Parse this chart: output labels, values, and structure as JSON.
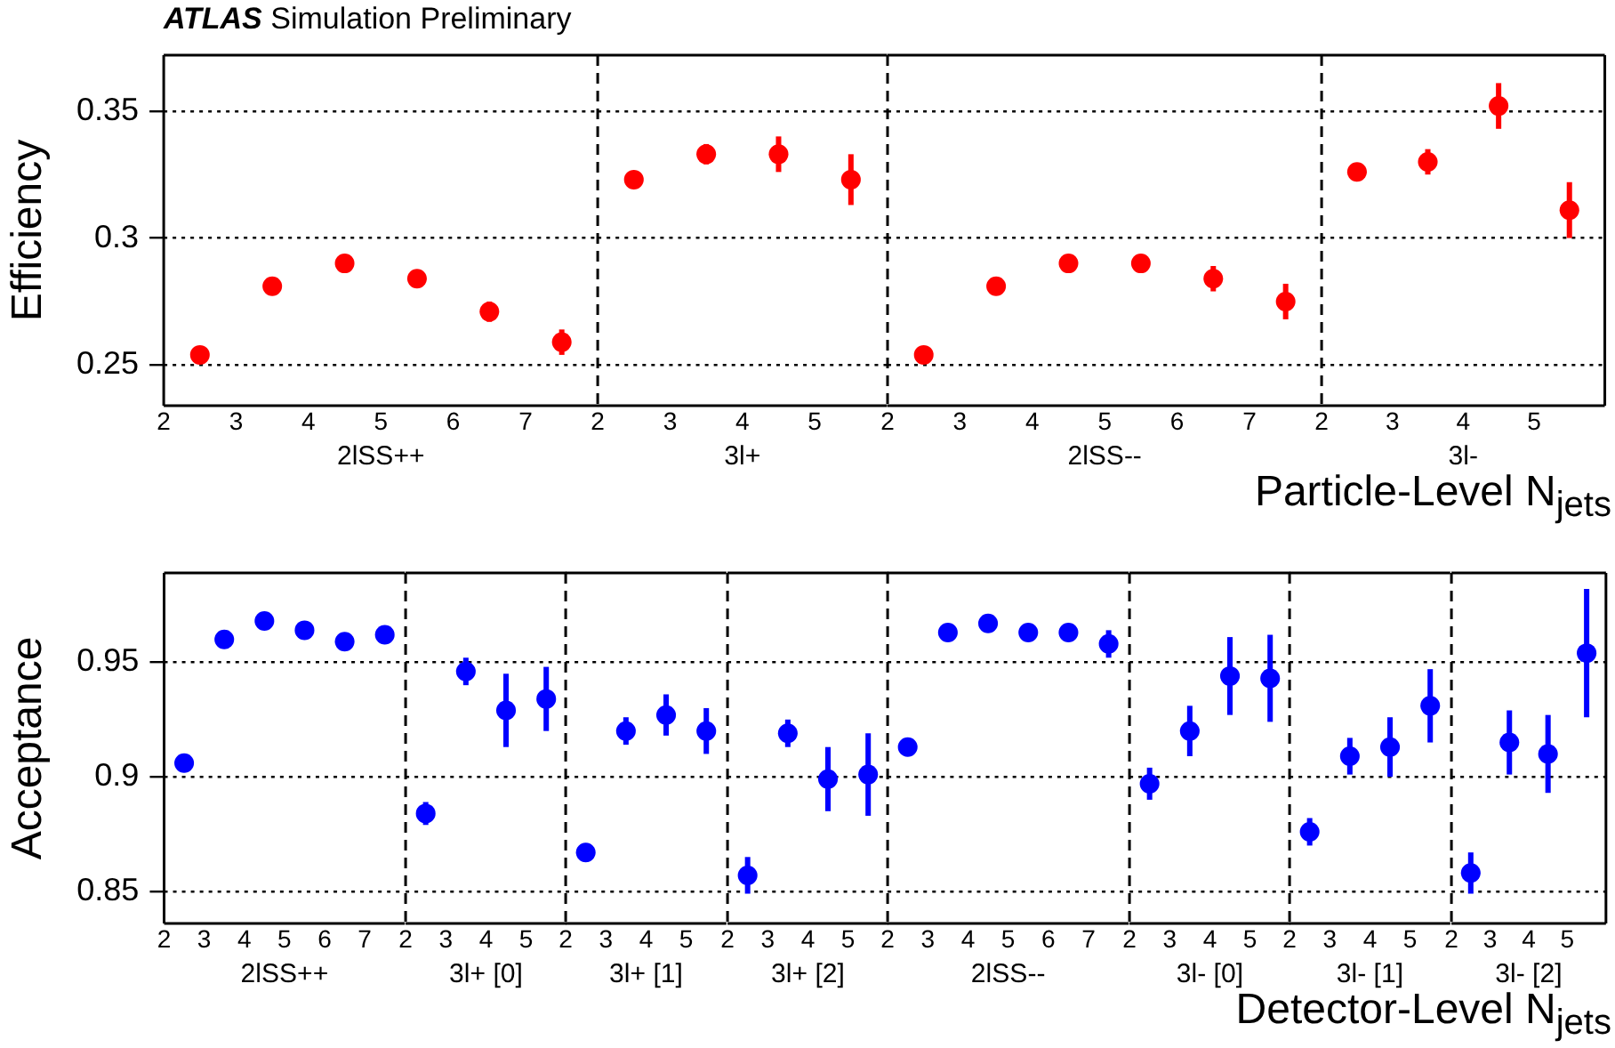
{
  "chart_data": [
    {
      "type": "scatter",
      "title": "ATLAS Simulation Preliminary",
      "ylabel": "Efficiency",
      "xlabel": "2lSS++",
      "x": [
        2.5,
        3.5,
        4.5,
        5.5,
        6.5,
        7.5
      ],
      "series": [
        {
          "color": "#ff0000",
          "values": [
            0.254,
            0.281,
            0.29,
            0.284,
            0.271,
            0.259
          ],
          "errors": [
            null,
            null,
            null,
            null,
            0.004,
            0.005
          ]
        }
      ],
      "xlim": [
        2,
        8
      ],
      "xticks": [
        2,
        3,
        4,
        5,
        6,
        7
      ],
      "ylim": [
        0.234,
        0.372
      ],
      "yticks": [
        0.25,
        0.3,
        0.35
      ],
      "grid": "y",
      "marker": "circle"
    },
    {
      "type": "scatter",
      "xlabel": "3l+",
      "x": [
        2.5,
        3.5,
        4.5,
        5.5
      ],
      "series": [
        {
          "color": "#ff0000",
          "values": [
            0.323,
            0.333,
            0.333,
            0.323
          ],
          "errors": [
            null,
            0.004,
            0.007,
            0.01
          ]
        }
      ],
      "xlim": [
        2,
        6
      ],
      "xticks": [
        2,
        3,
        4,
        5
      ],
      "ylim": [
        0.234,
        0.372
      ],
      "yticks": [
        0.25,
        0.3,
        0.35
      ],
      "grid": "y",
      "marker": "circle",
      "tick_labels": "x"
    },
    {
      "type": "scatter",
      "xlabel": "2lSS--",
      "x": [
        2.5,
        3.5,
        4.5,
        5.5,
        6.5,
        7.5
      ],
      "series": [
        {
          "color": "#ff0000",
          "values": [
            0.254,
            0.281,
            0.29,
            0.29,
            0.284,
            0.275
          ],
          "errors": [
            null,
            null,
            null,
            null,
            0.005,
            0.007
          ]
        }
      ],
      "xlim": [
        2,
        8
      ],
      "xticks": [
        2,
        3,
        4,
        5,
        6,
        7
      ],
      "ylim": [
        0.234,
        0.372
      ],
      "yticks": [
        0.25,
        0.3,
        0.35
      ],
      "grid": "y",
      "marker": "circle",
      "tick_labels": "x"
    },
    {
      "type": "scatter",
      "xlabel": "3l-",
      "x": [
        2.5,
        3.5,
        4.5,
        5.5
      ],
      "annotations": [
        "Particle-Level N$_{jets}$"
      ],
      "series": [
        {
          "color": "#ff0000",
          "values": [
            0.326,
            0.33,
            0.352,
            0.311
          ],
          "errors": [
            0.003,
            0.005,
            0.009,
            0.011
          ]
        }
      ],
      "xlim": [
        2,
        6
      ],
      "xticks": [
        2,
        3,
        4,
        5
      ],
      "ylim": [
        0.234,
        0.372
      ],
      "yticks": [
        0.25,
        0.3,
        0.35
      ],
      "grid": "y",
      "marker": "circle",
      "tick_labels": "x"
    },
    {
      "type": "scatter",
      "ylabel": "Acceptance",
      "xlabel": "2lSS++",
      "x": [
        2.5,
        3.5,
        4.5,
        5.5,
        6.5,
        7.5
      ],
      "series": [
        {
          "color": "#0000ff",
          "values": [
            0.906,
            0.96,
            0.968,
            0.964,
            0.959,
            0.962
          ],
          "errors": [
            null,
            null,
            null,
            null,
            null,
            null
          ]
        }
      ],
      "xlim": [
        2,
        8
      ],
      "xticks": [
        2,
        3,
        4,
        5,
        6,
        7
      ],
      "ylim": [
        0.836,
        0.989
      ],
      "yticks": [
        0.85,
        0.9,
        0.95
      ],
      "grid": "y",
      "marker": "circle"
    },
    {
      "type": "scatter",
      "xlabel": "3l+ [0]",
      "x": [
        2.5,
        3.5,
        4.5,
        5.5
      ],
      "series": [
        {
          "color": "#0000ff",
          "values": [
            0.884,
            0.946,
            0.929,
            0.934
          ],
          "errors": [
            0.005,
            0.006,
            0.016,
            0.014
          ]
        }
      ],
      "xlim": [
        2,
        6
      ],
      "xticks": [
        2,
        3,
        4,
        5
      ],
      "ylim": [
        0.836,
        0.989
      ],
      "yticks": [
        0.85,
        0.9,
        0.95
      ],
      "grid": "y",
      "marker": "circle",
      "tick_labels": "x"
    },
    {
      "type": "scatter",
      "xlabel": "3l+ [1]",
      "x": [
        2.5,
        3.5,
        4.5,
        5.5
      ],
      "series": [
        {
          "color": "#0000ff",
          "values": [
            0.867,
            0.92,
            0.927,
            0.92
          ],
          "errors": [
            0.004,
            0.006,
            0.009,
            0.01
          ]
        }
      ],
      "xlim": [
        2,
        6
      ],
      "xticks": [
        2,
        3,
        4,
        5
      ],
      "ylim": [
        0.836,
        0.989
      ],
      "yticks": [
        0.85,
        0.9,
        0.95
      ],
      "grid": "y",
      "marker": "circle",
      "tick_labels": "x"
    },
    {
      "type": "scatter",
      "xlabel": "3l+ [2]",
      "x": [
        2.5,
        3.5,
        4.5,
        5.5
      ],
      "series": [
        {
          "color": "#0000ff",
          "values": [
            0.857,
            0.919,
            0.899,
            0.901
          ],
          "errors": [
            0.008,
            0.006,
            0.014,
            0.018
          ]
        }
      ],
      "xlim": [
        2,
        6
      ],
      "xticks": [
        2,
        3,
        4,
        5
      ],
      "ylim": [
        0.836,
        0.989
      ],
      "yticks": [
        0.85,
        0.9,
        0.95
      ],
      "grid": "y",
      "marker": "circle",
      "tick_labels": "x"
    },
    {
      "type": "scatter",
      "xlabel": "2lSS--",
      "x": [
        2.5,
        3.5,
        4.5,
        5.5,
        6.5,
        7.5
      ],
      "series": [
        {
          "color": "#0000ff",
          "values": [
            0.913,
            0.963,
            0.967,
            0.963,
            0.963,
            0.958
          ],
          "errors": [
            null,
            null,
            null,
            null,
            null,
            0.006
          ]
        }
      ],
      "xlim": [
        2,
        8
      ],
      "xticks": [
        2,
        3,
        4,
        5,
        6,
        7
      ],
      "ylim": [
        0.836,
        0.989
      ],
      "yticks": [
        0.85,
        0.9,
        0.95
      ],
      "grid": "y",
      "marker": "circle",
      "tick_labels": "x"
    },
    {
      "type": "scatter",
      "xlabel": "3l- [0]",
      "x": [
        2.5,
        3.5,
        4.5,
        5.5
      ],
      "series": [
        {
          "color": "#0000ff",
          "values": [
            0.897,
            0.92,
            0.944,
            0.943
          ],
          "errors": [
            0.007,
            0.011,
            0.017,
            0.019
          ]
        }
      ],
      "xlim": [
        2,
        6
      ],
      "xticks": [
        2,
        3,
        4,
        5
      ],
      "ylim": [
        0.836,
        0.989
      ],
      "yticks": [
        0.85,
        0.9,
        0.95
      ],
      "grid": "y",
      "marker": "circle",
      "tick_labels": "x"
    },
    {
      "type": "scatter",
      "xlabel": "3l- [1]",
      "x": [
        2.5,
        3.5,
        4.5,
        5.5
      ],
      "series": [
        {
          "color": "#0000ff",
          "values": [
            0.876,
            0.909,
            0.913,
            0.931
          ],
          "errors": [
            0.006,
            0.008,
            0.013,
            0.016
          ]
        }
      ],
      "xlim": [
        2,
        6
      ],
      "xticks": [
        2,
        3,
        4,
        5
      ],
      "ylim": [
        0.836,
        0.989
      ],
      "yticks": [
        0.85,
        0.9,
        0.95
      ],
      "grid": "y",
      "marker": "circle",
      "tick_labels": "x"
    },
    {
      "type": "scatter",
      "xlabel": "3l- [2]",
      "x": [
        2.5,
        3.5,
        4.5,
        5.5
      ],
      "annotations": [
        "Detector-Level N$_{jets}$"
      ],
      "series": [
        {
          "color": "#0000ff",
          "values": [
            0.858,
            0.915,
            0.91,
            0.954
          ],
          "errors": [
            0.009,
            0.014,
            0.017,
            0.028
          ]
        }
      ],
      "xlim": [
        2,
        6
      ],
      "xticks": [
        2,
        3,
        4,
        5
      ],
      "ylim": [
        0.836,
        0.989
      ],
      "yticks": [
        0.85,
        0.9,
        0.95
      ],
      "grid": "y",
      "marker": "circle",
      "tick_labels": "x"
    }
  ]
}
